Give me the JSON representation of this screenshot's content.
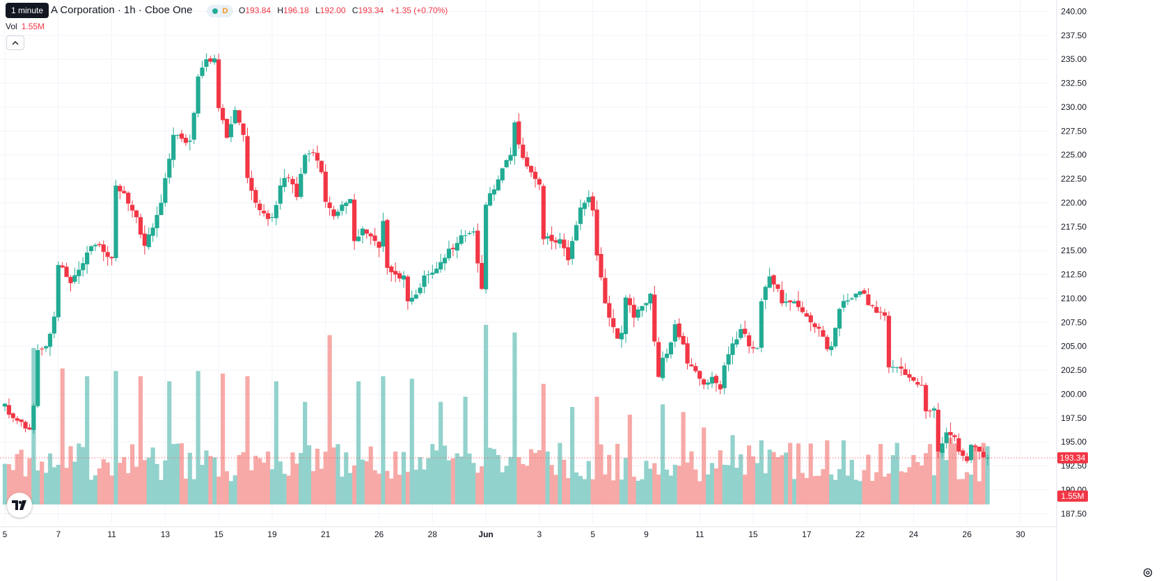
{
  "header": {
    "tooltip": "1 minute",
    "title": "A Corporation · 1h · Cboe One",
    "interval_badge": "D",
    "ohlc": [
      {
        "k": "O",
        "v": "193.84"
      },
      {
        "k": "H",
        "v": "196.18"
      },
      {
        "k": "L",
        "v": "192.00"
      },
      {
        "k": "C",
        "v": "193.34"
      },
      {
        "k": "",
        "v": "+1.35 (+0.70%)"
      }
    ],
    "vol_label": "Vol",
    "vol_value": "1.55M"
  },
  "icons": {
    "collapse": "chevron-up-icon",
    "logo": "tradingview-logo-icon",
    "settings": "gear-icon"
  },
  "colors": {
    "up": "#22ab94",
    "down": "#f23645",
    "up_volume": "#92d2cc",
    "down_volume": "#f7a9a7",
    "grid": "#f0f3fa"
  },
  "chart_data": {
    "type": "candlestick",
    "price_axis": {
      "ticks": [
        "240.00",
        "237.50",
        "235.00",
        "232.50",
        "230.00",
        "227.50",
        "225.00",
        "222.50",
        "220.00",
        "217.50",
        "215.00",
        "212.50",
        "210.00",
        "207.50",
        "205.00",
        "202.50",
        "200.00",
        "197.50",
        "195.00",
        "192.50",
        "190.00",
        "187.50"
      ],
      "range": [
        186.5,
        241.2
      ]
    },
    "time_axis": {
      "labels": [
        "5",
        "7",
        "11",
        "13",
        "15",
        "19",
        "21",
        "26",
        "28",
        "Jun",
        "3",
        "5",
        "9",
        "11",
        "15",
        "17",
        "22",
        "24",
        "26",
        "30"
      ],
      "label_bar_index": [
        0,
        13,
        26,
        39,
        52,
        65,
        78,
        91,
        104,
        117,
        130,
        143,
        156,
        169,
        182,
        195,
        208,
        221,
        234,
        247
      ]
    },
    "last_price": "193.34",
    "last_volume": "1.55M",
    "anchors": [
      [
        0,
        199.0
      ],
      [
        2,
        197.5
      ],
      [
        6,
        196.3
      ],
      [
        7,
        198.8
      ],
      [
        8,
        204.6
      ],
      [
        10,
        205.0
      ],
      [
        12,
        208.1
      ],
      [
        13,
        213.5
      ],
      [
        16,
        211.6
      ],
      [
        20,
        214.8
      ],
      [
        22,
        215.6
      ],
      [
        26,
        214.2
      ],
      [
        27,
        221.8
      ],
      [
        29,
        221.0
      ],
      [
        32,
        218.5
      ],
      [
        34,
        215.5
      ],
      [
        36,
        217.4
      ],
      [
        38,
        220.0
      ],
      [
        40,
        224.6
      ],
      [
        41,
        227.1
      ],
      [
        43,
        226.7
      ],
      [
        45,
        226.5
      ],
      [
        46,
        229.4
      ],
      [
        47,
        233.2
      ],
      [
        49,
        235.0
      ],
      [
        51,
        235.1
      ],
      [
        52,
        229.9
      ],
      [
        54,
        226.8
      ],
      [
        56,
        229.7
      ],
      [
        58,
        227.1
      ],
      [
        59,
        222.6
      ],
      [
        61,
        220.0
      ],
      [
        63,
        218.9
      ],
      [
        65,
        218.5
      ],
      [
        67,
        221.8
      ],
      [
        69,
        222.6
      ],
      [
        71,
        220.6
      ],
      [
        73,
        225.0
      ],
      [
        75,
        225.2
      ],
      [
        77,
        223.2
      ],
      [
        78,
        220.1
      ],
      [
        80,
        218.6
      ],
      [
        82,
        219.8
      ],
      [
        84,
        220.4
      ],
      [
        85,
        216.0
      ],
      [
        87,
        217.3
      ],
      [
        89,
        216.5
      ],
      [
        91,
        215.3
      ],
      [
        92,
        218.1
      ],
      [
        93,
        213.2
      ],
      [
        95,
        212.5
      ],
      [
        97,
        212.4
      ],
      [
        98,
        209.7
      ],
      [
        100,
        210.4
      ],
      [
        102,
        212.4
      ],
      [
        104,
        212.7
      ],
      [
        106,
        213.8
      ],
      [
        108,
        215.2
      ],
      [
        110,
        215.8
      ],
      [
        112,
        216.6
      ],
      [
        114,
        217.0
      ],
      [
        116,
        211.0
      ],
      [
        117,
        219.8
      ],
      [
        119,
        221.4
      ],
      [
        121,
        223.6
      ],
      [
        123,
        225.0
      ],
      [
        124,
        228.4
      ],
      [
        125,
        226.1
      ],
      [
        127,
        223.8
      ],
      [
        129,
        222.5
      ],
      [
        130,
        221.9
      ],
      [
        131,
        216.2
      ],
      [
        133,
        216.0
      ],
      [
        135,
        216.2
      ],
      [
        137,
        214.0
      ],
      [
        138,
        216.0
      ],
      [
        140,
        219.5
      ],
      [
        142,
        220.6
      ],
      [
        143,
        219.2
      ],
      [
        144,
        214.5
      ],
      [
        146,
        209.5
      ],
      [
        148,
        207.0
      ],
      [
        149,
        205.8
      ],
      [
        150,
        206.4
      ],
      [
        151,
        210.1
      ],
      [
        153,
        208.0
      ],
      [
        155,
        209.2
      ],
      [
        157,
        210.5
      ],
      [
        158,
        205.5
      ],
      [
        159,
        201.8
      ],
      [
        160,
        203.8
      ],
      [
        162,
        205.4
      ],
      [
        163,
        207.3
      ],
      [
        165,
        205.2
      ],
      [
        166,
        203.2
      ],
      [
        168,
        202.4
      ],
      [
        170,
        201.0
      ],
      [
        172,
        201.8
      ],
      [
        174,
        200.5
      ],
      [
        175,
        203.0
      ],
      [
        177,
        205.3
      ],
      [
        179,
        206.8
      ],
      [
        181,
        205.0
      ],
      [
        183,
        204.8
      ],
      [
        184,
        209.7
      ],
      [
        186,
        212.3
      ],
      [
        188,
        211.0
      ],
      [
        189,
        209.5
      ],
      [
        191,
        209.6
      ],
      [
        193,
        209.1
      ],
      [
        195,
        208.1
      ],
      [
        197,
        207.0
      ],
      [
        199,
        206.0
      ],
      [
        200,
        204.7
      ],
      [
        201,
        205.0
      ],
      [
        203,
        208.9
      ],
      [
        205,
        209.8
      ],
      [
        207,
        210.5
      ],
      [
        209,
        210.5
      ],
      [
        210,
        209.3
      ],
      [
        212,
        208.5
      ],
      [
        214,
        208.2
      ],
      [
        215,
        202.8
      ],
      [
        217,
        202.8
      ],
      [
        219,
        202.0
      ],
      [
        221,
        201.4
      ],
      [
        223,
        200.9
      ],
      [
        224,
        198.2
      ],
      [
        226,
        198.5
      ],
      [
        227,
        194.0
      ],
      [
        229,
        196.0
      ],
      [
        231,
        195.5
      ],
      [
        232,
        194.0
      ],
      [
        234,
        193.0
      ],
      [
        235,
        194.7
      ],
      [
        237,
        194.0
      ],
      [
        238,
        193.4
      ],
      [
        239,
        193.34
      ]
    ],
    "volume_scale_max": 8.0,
    "volume_spikes": [
      [
        7,
        6.1
      ],
      [
        14,
        5.3
      ],
      [
        20,
        5.0
      ],
      [
        27,
        5.2
      ],
      [
        33,
        5.0
      ],
      [
        40,
        4.8
      ],
      [
        47,
        5.2
      ],
      [
        53,
        5.1
      ],
      [
        59,
        5.0
      ],
      [
        66,
        4.8
      ],
      [
        73,
        4.0
      ],
      [
        79,
        6.6
      ],
      [
        86,
        4.8
      ],
      [
        92,
        5.0
      ],
      [
        99,
        4.9
      ],
      [
        106,
        4.0
      ],
      [
        112,
        4.2
      ],
      [
        117,
        7.0
      ],
      [
        124,
        6.7
      ],
      [
        131,
        4.7
      ],
      [
        138,
        3.8
      ],
      [
        144,
        4.2
      ],
      [
        152,
        3.5
      ],
      [
        160,
        3.9
      ],
      [
        165,
        3.6
      ],
      [
        170,
        3.0
      ],
      [
        177,
        2.7
      ],
      [
        184,
        2.5
      ],
      [
        191,
        2.4
      ],
      [
        200,
        2.5
      ],
      [
        204,
        2.5
      ],
      [
        217,
        2.4
      ],
      [
        224,
        2.0
      ],
      [
        227,
        3.1
      ],
      [
        230,
        2.6
      ],
      [
        236,
        2.3
      ],
      [
        238,
        2.4
      ]
    ]
  }
}
